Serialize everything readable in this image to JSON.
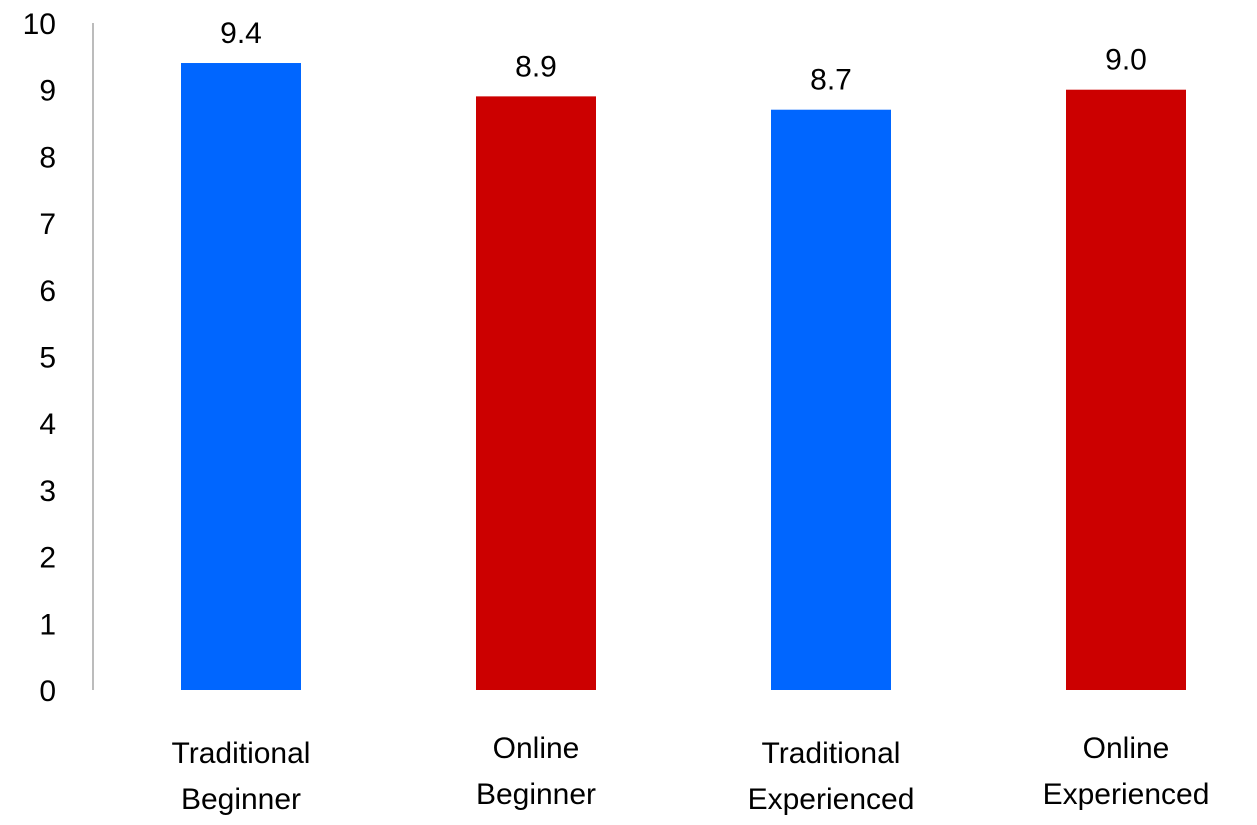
{
  "chart_data": {
    "type": "bar",
    "categories": [
      [
        "Traditional",
        "Beginner"
      ],
      [
        "Online",
        "Beginner"
      ],
      [
        "Traditional",
        "Experienced"
      ],
      [
        "Online",
        "Experienced"
      ]
    ],
    "values": [
      9.4,
      8.9,
      8.7,
      9.0
    ],
    "value_labels": [
      "9.4",
      "8.9",
      "8.7",
      "9.0"
    ],
    "bar_colors": [
      "#0066ff",
      "#cc0000",
      "#0066ff",
      "#cc0000"
    ],
    "ylim": [
      0,
      10
    ],
    "yticks": [
      "0",
      "1",
      "2",
      "3",
      "4",
      "5",
      "6",
      "7",
      "8",
      "9",
      "10"
    ],
    "title": "",
    "xlabel": "",
    "ylabel": "",
    "grid": false,
    "legend": "none",
    "axis_color": "#a6a6a6"
  }
}
